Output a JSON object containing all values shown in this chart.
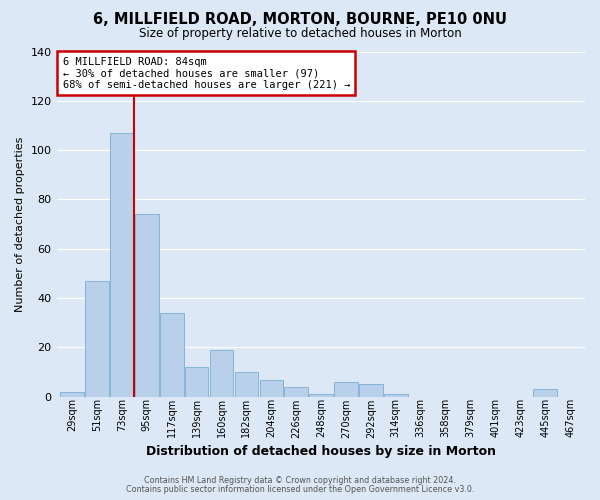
{
  "title": "6, MILLFIELD ROAD, MORTON, BOURNE, PE10 0NU",
  "subtitle": "Size of property relative to detached houses in Morton",
  "xlabel": "Distribution of detached houses by size in Morton",
  "ylabel": "Number of detached properties",
  "categories": [
    "29sqm",
    "51sqm",
    "73sqm",
    "95sqm",
    "117sqm",
    "139sqm",
    "160sqm",
    "182sqm",
    "204sqm",
    "226sqm",
    "248sqm",
    "270sqm",
    "292sqm",
    "314sqm",
    "336sqm",
    "358sqm",
    "379sqm",
    "401sqm",
    "423sqm",
    "445sqm",
    "467sqm"
  ],
  "values": [
    2,
    47,
    107,
    74,
    34,
    12,
    19,
    10,
    7,
    4,
    1,
    6,
    5,
    1,
    0,
    0,
    0,
    0,
    0,
    3,
    0
  ],
  "bar_color": "#b8d0ea",
  "bar_edge_color": "#7aaed4",
  "background_color": "#dce8f5",
  "plot_bg_color": "#dce8f5",
  "grid_color": "#ffffff",
  "ylim": [
    0,
    140
  ],
  "yticks": [
    0,
    20,
    40,
    60,
    80,
    100,
    120,
    140
  ],
  "vline_color": "#cc0000",
  "annotation_box_text": "6 MILLFIELD ROAD: 84sqm\n← 30% of detached houses are smaller (97)\n68% of semi-detached houses are larger (221) →",
  "annotation_box_edge_color": "#cc0000",
  "footer_line1": "Contains HM Land Registry data © Crown copyright and database right 2024.",
  "footer_line2": "Contains public sector information licensed under the Open Government Licence v3.0."
}
